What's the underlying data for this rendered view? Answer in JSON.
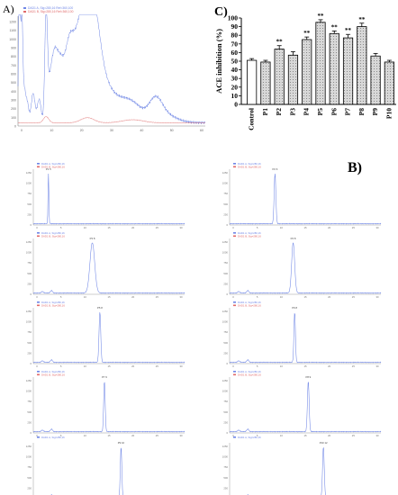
{
  "panels": {
    "a": "A)",
    "b": "B)",
    "c": "C)"
  },
  "colors": {
    "blue": "#6f86e6",
    "red": "#e06a6a",
    "bar_fill": "#d8d8d8",
    "axis": "#000000"
  },
  "chromatogram_a": {
    "legend": [
      "DAD1 A, Sig=280,16 Ref=360,100",
      "DAD1 B, Sig=280,16 Ref=360,100"
    ],
    "y_ticks": [
      "1200",
      "1100",
      "1000",
      "900",
      "800",
      "700",
      "600",
      "500",
      "400",
      "300",
      "200",
      "100",
      "0"
    ],
    "x_ticks": [
      "0",
      "10",
      "20",
      "30",
      "40",
      "50",
      "60"
    ],
    "peaks": [
      {
        "x": 0.45,
        "h": 0.92,
        "w": 0.006
      },
      {
        "x": 0.5,
        "h": 0.82,
        "w": 0.006
      },
      {
        "x": 1.1,
        "h": 0.55,
        "w": 0.006
      },
      {
        "x": 1.4,
        "h": 0.6,
        "w": 0.006
      },
      {
        "x": 2.0,
        "h": 0.3,
        "w": 0.01
      },
      {
        "x": 3.0,
        "h": 0.2,
        "w": 0.012
      },
      {
        "x": 5.0,
        "h": 0.28,
        "w": 0.014
      },
      {
        "x": 7.0,
        "h": 0.22,
        "w": 0.014
      },
      {
        "x": 9.3,
        "h": 0.97,
        "w": 0.01
      },
      {
        "x": 10.5,
        "h": 0.35,
        "w": 0.02
      },
      {
        "x": 12.0,
        "h": 0.45,
        "w": 0.02
      },
      {
        "x": 13.5,
        "h": 0.4,
        "w": 0.025
      },
      {
        "x": 15.0,
        "h": 0.3,
        "w": 0.03
      },
      {
        "x": 17.0,
        "h": 0.5,
        "w": 0.03
      },
      {
        "x": 19.0,
        "h": 0.4,
        "w": 0.04
      },
      {
        "x": 21.0,
        "h": 0.48,
        "w": 0.04
      },
      {
        "x": 23.3,
        "h": 0.62,
        "w": 0.05
      },
      {
        "x": 24.8,
        "h": 0.42,
        "w": 0.04
      },
      {
        "x": 26.5,
        "h": 0.3,
        "w": 0.04
      },
      {
        "x": 28.5,
        "h": 0.22,
        "w": 0.05
      },
      {
        "x": 31.0,
        "h": 0.14,
        "w": 0.06
      },
      {
        "x": 34.0,
        "h": 0.1,
        "w": 0.06
      },
      {
        "x": 37.0,
        "h": 0.12,
        "w": 0.06
      },
      {
        "x": 40.0,
        "h": 0.08,
        "w": 0.06
      },
      {
        "x": 45.5,
        "h": 0.2,
        "w": 0.05
      },
      {
        "x": 49.0,
        "h": 0.07,
        "w": 0.08
      }
    ],
    "red_peaks": [
      {
        "x": 9.3,
        "h": 0.06,
        "w": 0.02
      },
      {
        "x": 23.0,
        "h": 0.05,
        "w": 0.05
      },
      {
        "x": 38.0,
        "h": 0.03,
        "w": 0.08
      }
    ]
  },
  "chromatograms_b": [
    {
      "legend": [
        "DAD1 A, Sig=280,16",
        "DAD1 B, Sig=280,16"
      ],
      "peak_label": "P1 5",
      "peak_pos": 0.1,
      "peak_width": 0.004,
      "y_ticks": [
        "1250",
        "1000",
        "750",
        "500",
        "250",
        "0"
      ],
      "x_ticks": [
        "0",
        "5",
        "10",
        "15",
        "20",
        "25",
        "30"
      ]
    },
    {
      "legend": [
        "DAD1 A, Sig=280,16",
        "DAD1 B, Sig=280,16"
      ],
      "peak_label": "P2 6",
      "peak_pos": 0.3,
      "peak_width": 0.008,
      "y_ticks": [
        "1250",
        "1000",
        "750",
        "500",
        "250",
        "0"
      ],
      "x_ticks": [
        "0",
        "5",
        "10",
        "15",
        "20",
        "25",
        "30"
      ]
    },
    {
      "legend": [
        "DAD1 A, Sig=280,16",
        "DAD1 B, Sig=280,16"
      ],
      "peak_label": "P3 8",
      "peak_pos": 0.39,
      "peak_width": 0.022,
      "y_ticks": [
        "1250",
        "1000",
        "750",
        "500",
        "250",
        "0"
      ],
      "x_ticks": [
        "0",
        "5",
        "10",
        "15",
        "20",
        "25",
        "30"
      ]
    },
    {
      "legend": [
        "DAD1 A, Sig=280,16",
        "DAD1 B, Sig=280,16"
      ],
      "peak_label": "P4 8",
      "peak_pos": 0.42,
      "peak_width": 0.014,
      "y_ticks": [
        "1250",
        "1000",
        "750",
        "500",
        "250",
        "0"
      ],
      "x_ticks": [
        "0",
        "5",
        "10",
        "15",
        "20",
        "25",
        "30"
      ]
    },
    {
      "legend": [
        "DAD1 A, Sig=280,16",
        "DAD1 B, Sig=280,16"
      ],
      "peak_label": "P5 8",
      "peak_pos": 0.44,
      "peak_width": 0.008,
      "y_ticks": [
        "1250",
        "1000",
        "750",
        "500",
        "250",
        "0"
      ],
      "x_ticks": [
        "0",
        "5",
        "10",
        "15",
        "20",
        "25",
        "30"
      ]
    },
    {
      "legend": [
        "DAD1 A, Sig=280,16",
        "DAD1 B, Sig=280,16"
      ],
      "peak_label": "P6 8",
      "peak_pos": 0.43,
      "peak_width": 0.007,
      "y_ticks": [
        "1250",
        "1000",
        "750",
        "500",
        "250",
        "0"
      ],
      "x_ticks": [
        "0",
        "5",
        "10",
        "15",
        "20",
        "25",
        "30"
      ]
    },
    {
      "legend": [
        "DAD1 A, Sig=280,16",
        "DAD1 B, Sig=280,16"
      ],
      "peak_label": "P7 9",
      "peak_pos": 0.47,
      "peak_width": 0.007,
      "y_ticks": [
        "1250",
        "1000",
        "750",
        "500",
        "250",
        "0"
      ],
      "x_ticks": [
        "0",
        "5",
        "10",
        "15",
        "20",
        "25",
        "30"
      ]
    },
    {
      "legend": [
        "DAD1 A, Sig=280,16",
        "DAD1 B, Sig=280,16"
      ],
      "peak_label": "P8 9",
      "peak_pos": 0.52,
      "peak_width": 0.008,
      "y_ticks": [
        "1250",
        "1000",
        "750",
        "500",
        "250",
        "0"
      ],
      "x_ticks": [
        "0",
        "5",
        "10",
        "15",
        "20",
        "25",
        "30"
      ]
    },
    {
      "legend": [
        "DAD1 A, Sig=280,16"
      ],
      "peak_label": "P9 10",
      "peak_pos": 0.58,
      "peak_width": 0.007,
      "y_ticks": [
        "1250",
        "1000",
        "750",
        "500",
        "250",
        "0"
      ],
      "x_ticks": [
        "0",
        "5",
        "10",
        "15",
        "20",
        "25",
        "30"
      ]
    },
    {
      "legend": [
        "DAD1 A, Sig=280,16"
      ],
      "peak_label": "P10 12",
      "peak_pos": 0.62,
      "peak_width": 0.008,
      "y_ticks": [
        "1250",
        "1000",
        "750",
        "500",
        "250",
        "0"
      ],
      "x_ticks": [
        "0",
        "5",
        "10",
        "15",
        "20",
        "25",
        "30"
      ]
    }
  ],
  "chart_data": {
    "type": "bar",
    "categories": [
      "Control",
      "P1",
      "P2",
      "P3",
      "P4",
      "P5",
      "P6",
      "P7",
      "P8",
      "P9",
      "P10"
    ],
    "values": [
      51,
      49,
      64,
      57,
      75,
      95,
      82,
      77,
      90,
      56,
      49
    ],
    "errors": [
      2,
      2,
      4,
      4,
      3,
      3,
      3,
      4,
      4,
      3,
      2
    ],
    "significance": [
      "",
      "",
      "**",
      "",
      "**",
      "**",
      "**",
      "**",
      "**",
      "",
      ""
    ],
    "ylabel": "ACE inhibition (%)",
    "ylim": [
      0,
      100
    ],
    "yticks": [
      0,
      10,
      20,
      30,
      40,
      50,
      60,
      70,
      80,
      90,
      100
    ],
    "grid": false
  }
}
